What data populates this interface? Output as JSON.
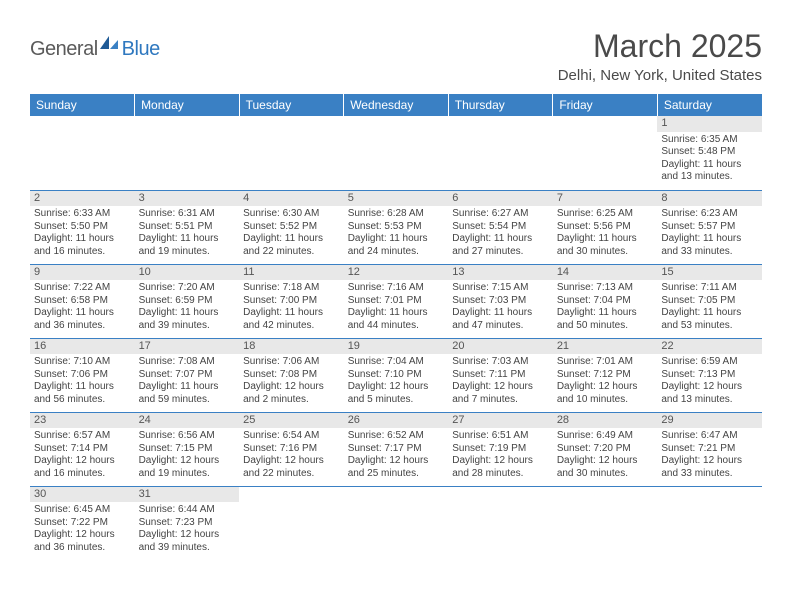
{
  "logo": {
    "general": "General",
    "blue": "Blue"
  },
  "title": "March 2025",
  "location": "Delhi, New York, United States",
  "colors": {
    "header_bg": "#3a80c4",
    "header_text": "#ffffff",
    "daynum_bg": "#e8e8e8",
    "border": "#3a80c4",
    "logo_gray": "#5a5a5a",
    "logo_blue": "#2f78bf"
  },
  "weekdays": [
    "Sunday",
    "Monday",
    "Tuesday",
    "Wednesday",
    "Thursday",
    "Friday",
    "Saturday"
  ],
  "weeks": [
    [
      null,
      null,
      null,
      null,
      null,
      null,
      {
        "n": "1",
        "sr": "Sunrise: 6:35 AM",
        "ss": "Sunset: 5:48 PM",
        "dl": "Daylight: 11 hours and 13 minutes."
      }
    ],
    [
      {
        "n": "2",
        "sr": "Sunrise: 6:33 AM",
        "ss": "Sunset: 5:50 PM",
        "dl": "Daylight: 11 hours and 16 minutes."
      },
      {
        "n": "3",
        "sr": "Sunrise: 6:31 AM",
        "ss": "Sunset: 5:51 PM",
        "dl": "Daylight: 11 hours and 19 minutes."
      },
      {
        "n": "4",
        "sr": "Sunrise: 6:30 AM",
        "ss": "Sunset: 5:52 PM",
        "dl": "Daylight: 11 hours and 22 minutes."
      },
      {
        "n": "5",
        "sr": "Sunrise: 6:28 AM",
        "ss": "Sunset: 5:53 PM",
        "dl": "Daylight: 11 hours and 24 minutes."
      },
      {
        "n": "6",
        "sr": "Sunrise: 6:27 AM",
        "ss": "Sunset: 5:54 PM",
        "dl": "Daylight: 11 hours and 27 minutes."
      },
      {
        "n": "7",
        "sr": "Sunrise: 6:25 AM",
        "ss": "Sunset: 5:56 PM",
        "dl": "Daylight: 11 hours and 30 minutes."
      },
      {
        "n": "8",
        "sr": "Sunrise: 6:23 AM",
        "ss": "Sunset: 5:57 PM",
        "dl": "Daylight: 11 hours and 33 minutes."
      }
    ],
    [
      {
        "n": "9",
        "sr": "Sunrise: 7:22 AM",
        "ss": "Sunset: 6:58 PM",
        "dl": "Daylight: 11 hours and 36 minutes."
      },
      {
        "n": "10",
        "sr": "Sunrise: 7:20 AM",
        "ss": "Sunset: 6:59 PM",
        "dl": "Daylight: 11 hours and 39 minutes."
      },
      {
        "n": "11",
        "sr": "Sunrise: 7:18 AM",
        "ss": "Sunset: 7:00 PM",
        "dl": "Daylight: 11 hours and 42 minutes."
      },
      {
        "n": "12",
        "sr": "Sunrise: 7:16 AM",
        "ss": "Sunset: 7:01 PM",
        "dl": "Daylight: 11 hours and 44 minutes."
      },
      {
        "n": "13",
        "sr": "Sunrise: 7:15 AM",
        "ss": "Sunset: 7:03 PM",
        "dl": "Daylight: 11 hours and 47 minutes."
      },
      {
        "n": "14",
        "sr": "Sunrise: 7:13 AM",
        "ss": "Sunset: 7:04 PM",
        "dl": "Daylight: 11 hours and 50 minutes."
      },
      {
        "n": "15",
        "sr": "Sunrise: 7:11 AM",
        "ss": "Sunset: 7:05 PM",
        "dl": "Daylight: 11 hours and 53 minutes."
      }
    ],
    [
      {
        "n": "16",
        "sr": "Sunrise: 7:10 AM",
        "ss": "Sunset: 7:06 PM",
        "dl": "Daylight: 11 hours and 56 minutes."
      },
      {
        "n": "17",
        "sr": "Sunrise: 7:08 AM",
        "ss": "Sunset: 7:07 PM",
        "dl": "Daylight: 11 hours and 59 minutes."
      },
      {
        "n": "18",
        "sr": "Sunrise: 7:06 AM",
        "ss": "Sunset: 7:08 PM",
        "dl": "Daylight: 12 hours and 2 minutes."
      },
      {
        "n": "19",
        "sr": "Sunrise: 7:04 AM",
        "ss": "Sunset: 7:10 PM",
        "dl": "Daylight: 12 hours and 5 minutes."
      },
      {
        "n": "20",
        "sr": "Sunrise: 7:03 AM",
        "ss": "Sunset: 7:11 PM",
        "dl": "Daylight: 12 hours and 7 minutes."
      },
      {
        "n": "21",
        "sr": "Sunrise: 7:01 AM",
        "ss": "Sunset: 7:12 PM",
        "dl": "Daylight: 12 hours and 10 minutes."
      },
      {
        "n": "22",
        "sr": "Sunrise: 6:59 AM",
        "ss": "Sunset: 7:13 PM",
        "dl": "Daylight: 12 hours and 13 minutes."
      }
    ],
    [
      {
        "n": "23",
        "sr": "Sunrise: 6:57 AM",
        "ss": "Sunset: 7:14 PM",
        "dl": "Daylight: 12 hours and 16 minutes."
      },
      {
        "n": "24",
        "sr": "Sunrise: 6:56 AM",
        "ss": "Sunset: 7:15 PM",
        "dl": "Daylight: 12 hours and 19 minutes."
      },
      {
        "n": "25",
        "sr": "Sunrise: 6:54 AM",
        "ss": "Sunset: 7:16 PM",
        "dl": "Daylight: 12 hours and 22 minutes."
      },
      {
        "n": "26",
        "sr": "Sunrise: 6:52 AM",
        "ss": "Sunset: 7:17 PM",
        "dl": "Daylight: 12 hours and 25 minutes."
      },
      {
        "n": "27",
        "sr": "Sunrise: 6:51 AM",
        "ss": "Sunset: 7:19 PM",
        "dl": "Daylight: 12 hours and 28 minutes."
      },
      {
        "n": "28",
        "sr": "Sunrise: 6:49 AM",
        "ss": "Sunset: 7:20 PM",
        "dl": "Daylight: 12 hours and 30 minutes."
      },
      {
        "n": "29",
        "sr": "Sunrise: 6:47 AM",
        "ss": "Sunset: 7:21 PM",
        "dl": "Daylight: 12 hours and 33 minutes."
      }
    ],
    [
      {
        "n": "30",
        "sr": "Sunrise: 6:45 AM",
        "ss": "Sunset: 7:22 PM",
        "dl": "Daylight: 12 hours and 36 minutes."
      },
      {
        "n": "31",
        "sr": "Sunrise: 6:44 AM",
        "ss": "Sunset: 7:23 PM",
        "dl": "Daylight: 12 hours and 39 minutes."
      },
      null,
      null,
      null,
      null,
      null
    ]
  ]
}
